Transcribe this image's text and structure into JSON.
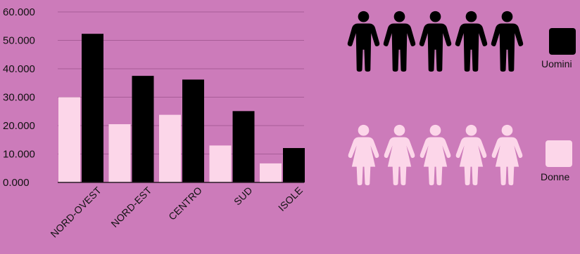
{
  "chart_data": {
    "type": "bar",
    "categories": [
      "NORD-OVEST",
      "NORD-EST",
      "CENTRO",
      "SUD",
      "ISOLE"
    ],
    "series": [
      {
        "name": "Donne",
        "color": "#fcd6e9",
        "values": [
          30000,
          20500,
          23800,
          13000,
          6700
        ]
      },
      {
        "name": "Uomini",
        "color": "#000000",
        "values": [
          52300,
          37500,
          36200,
          25100,
          12100
        ]
      }
    ],
    "ylim": [
      0,
      60000
    ],
    "yticks": [
      {
        "value": 0,
        "label": "0.000"
      },
      {
        "value": 10000,
        "label": "10.000"
      },
      {
        "value": 20000,
        "label": "20.000"
      },
      {
        "value": 30000,
        "label": "30.000"
      },
      {
        "value": 40000,
        "label": "40.000"
      },
      {
        "value": 50000,
        "label": "50.000"
      },
      {
        "value": 60000,
        "label": "60.000"
      }
    ],
    "grid": true,
    "legend": {
      "placement": "right",
      "items": [
        {
          "label": "Uomini",
          "color": "#000000",
          "icon": "male-person-icon",
          "icon_count": 5
        },
        {
          "label": "Donne",
          "color": "#fcd6e9",
          "icon": "female-person-icon",
          "icon_count": 5
        }
      ]
    }
  }
}
